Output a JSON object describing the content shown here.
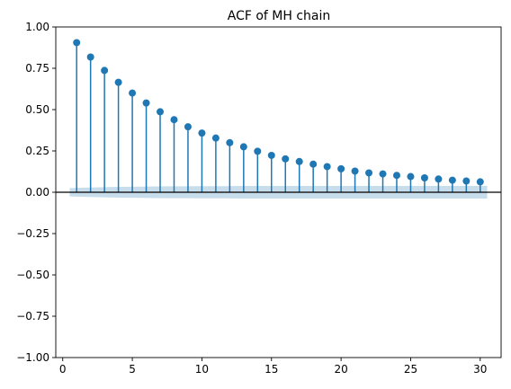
{
  "chart_data": {
    "type": "stem",
    "title": "ACF of MH chain",
    "xlabel": "",
    "ylabel": "",
    "xlim": [
      -0.5,
      31.5
    ],
    "ylim": [
      -1.0,
      1.0
    ],
    "xticks": [
      0,
      5,
      10,
      15,
      20,
      25,
      30
    ],
    "xtick_labels": [
      "0",
      "5",
      "10",
      "15",
      "20",
      "25",
      "30"
    ],
    "yticks": [
      -1.0,
      -0.75,
      -0.5,
      -0.25,
      0.0,
      0.25,
      0.5,
      0.75,
      1.0
    ],
    "ytick_labels": [
      "−1.00",
      "−0.75",
      "−0.50",
      "−0.25",
      "0.00",
      "0.25",
      "0.50",
      "0.75",
      "1.00"
    ],
    "grid": false,
    "colors": {
      "series": "#1f77b4",
      "zero_line": "#000000",
      "band": "#1f77b4"
    },
    "lags": [
      1,
      2,
      3,
      4,
      5,
      6,
      7,
      8,
      9,
      10,
      11,
      12,
      13,
      14,
      15,
      16,
      17,
      18,
      19,
      20,
      21,
      22,
      23,
      24,
      25,
      26,
      27,
      28,
      29,
      30
    ],
    "values": [
      0.905,
      0.818,
      0.737,
      0.665,
      0.6,
      0.54,
      0.487,
      0.439,
      0.396,
      0.358,
      0.328,
      0.3,
      0.275,
      0.248,
      0.223,
      0.202,
      0.186,
      0.17,
      0.155,
      0.142,
      0.128,
      0.117,
      0.111,
      0.102,
      0.095,
      0.087,
      0.08,
      0.073,
      0.068,
      0.063
    ],
    "confidence_band": {
      "x_start": 0.5,
      "x_end": 30.5,
      "lower": [
        -0.025,
        -0.028,
        -0.03,
        -0.032,
        -0.033,
        -0.034,
        -0.035,
        -0.036,
        -0.036,
        -0.037,
        -0.037,
        -0.037,
        -0.038,
        -0.038,
        -0.038,
        -0.038,
        -0.038,
        -0.038,
        -0.038,
        -0.038,
        -0.038,
        -0.038,
        -0.038,
        -0.038,
        -0.038,
        -0.038,
        -0.038,
        -0.038,
        -0.038,
        -0.038
      ],
      "upper": [
        0.025,
        0.028,
        0.03,
        0.032,
        0.033,
        0.034,
        0.035,
        0.036,
        0.036,
        0.037,
        0.037,
        0.037,
        0.038,
        0.038,
        0.038,
        0.038,
        0.038,
        0.038,
        0.038,
        0.038,
        0.038,
        0.038,
        0.038,
        0.038,
        0.038,
        0.038,
        0.038,
        0.038,
        0.038,
        0.038
      ]
    }
  }
}
